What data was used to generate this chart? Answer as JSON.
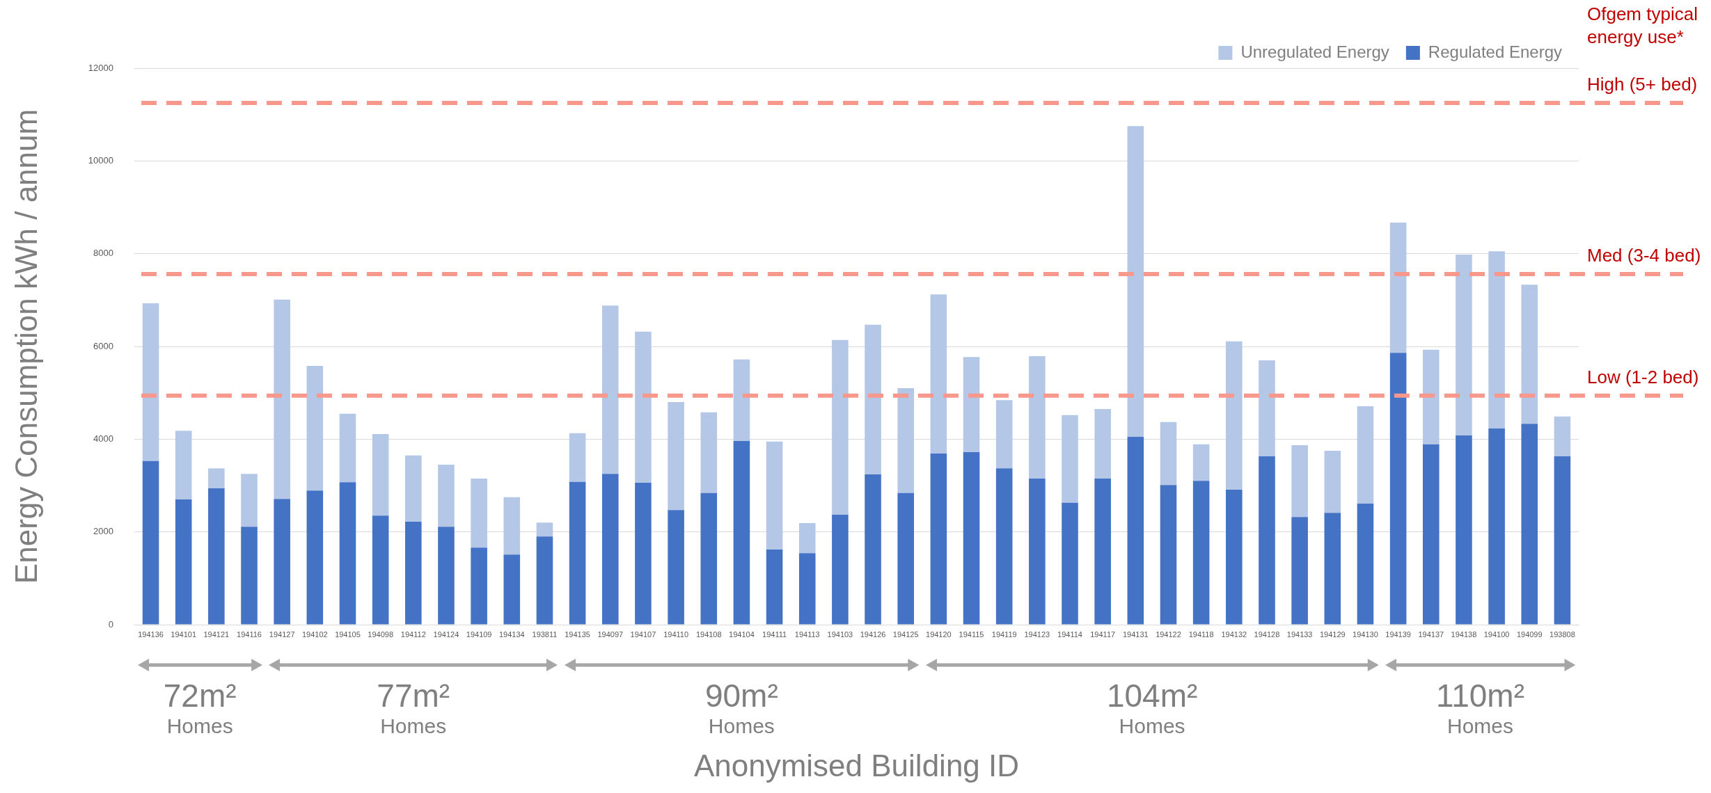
{
  "chart_data": {
    "type": "bar",
    "stacked": true,
    "xlabel": "Anonymised Building ID",
    "ylabel": "Energy Consumption kWh / annum",
    "categories": [
      "194136",
      "194101",
      "194121",
      "194116",
      "194127",
      "194102",
      "194105",
      "194098",
      "194112",
      "194124",
      "194109",
      "194134",
      "193811",
      "194135",
      "194097",
      "194107",
      "194110",
      "194108",
      "194104",
      "194111",
      "194113",
      "194103",
      "194126",
      "194125",
      "194120",
      "194115",
      "194119",
      "194123",
      "194114",
      "194117",
      "194131",
      "194122",
      "194118",
      "194132",
      "194128",
      "194133",
      "194129",
      "194130",
      "194139",
      "194137",
      "194138",
      "194100",
      "194099",
      "193808"
    ],
    "series": [
      {
        "name": "Regulated Energy",
        "color": "#4472c4",
        "values": [
          3530,
          2700,
          2940,
          2110,
          2710,
          2890,
          3070,
          2350,
          2220,
          2110,
          1660,
          1510,
          1900,
          3080,
          3250,
          3060,
          2470,
          2840,
          3960,
          1620,
          1540,
          2370,
          3240,
          2840,
          3690,
          3720,
          3370,
          3150,
          2630,
          3150,
          4050,
          3010,
          3100,
          2910,
          3630,
          2320,
          2410,
          2610,
          5860,
          3890,
          4080,
          4230,
          4330,
          3630
        ]
      },
      {
        "name": "Unregulated Energy",
        "color": "#b4c7e7",
        "values": [
          3400,
          1480,
          430,
          1140,
          4300,
          2690,
          1480,
          1760,
          1430,
          1340,
          1490,
          1240,
          300,
          1050,
          3630,
          3260,
          2330,
          1740,
          1760,
          2330,
          650,
          3770,
          3230,
          2260,
          3430,
          2050,
          1470,
          2640,
          1890,
          1500,
          6700,
          1360,
          790,
          3200,
          2070,
          1550,
          1340,
          2100,
          2810,
          2040,
          3900,
          3820,
          3000,
          860
        ]
      }
    ],
    "ylim": [
      0,
      12000
    ],
    "yticks": [
      0,
      2000,
      4000,
      6000,
      8000,
      10000,
      12000
    ],
    "grid": "y",
    "legend": "top right",
    "ref_lines": [
      {
        "axis": "y",
        "value": 11250,
        "label": "High (5+ bed)",
        "color": "#f8978b",
        "line_style": "dashed"
      },
      {
        "axis": "y",
        "value": 7560,
        "label": "Med (3-4 bed)",
        "color": "#f8978b",
        "line_style": "dashed"
      },
      {
        "axis": "y",
        "value": 4940,
        "label": "Low (1-2 bed)",
        "color": "#f8978b",
        "line_style": "dashed"
      }
    ],
    "annotations": [
      "Ofgem typical\nenergy use*",
      "72m²\nHomes",
      "77m²\nHomes",
      "90m²\nHomes",
      "104m²\nHomes",
      "110m²\nHomes"
    ]
  }
}
